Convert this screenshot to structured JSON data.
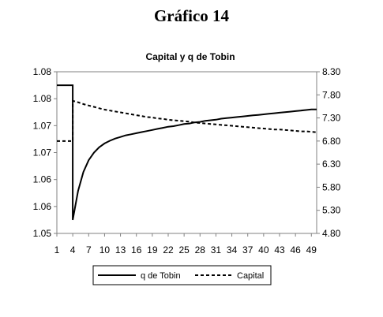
{
  "page_title": "Gráfico 14",
  "chart_data": {
    "type": "line",
    "title": "Capital y q de Tobin",
    "x": [
      1,
      2,
      3,
      4,
      5,
      6,
      7,
      8,
      9,
      10,
      11,
      12,
      13,
      14,
      15,
      16,
      17,
      18,
      19,
      20,
      21,
      22,
      23,
      24,
      25,
      26,
      27,
      28,
      29,
      30,
      31,
      32,
      33,
      34,
      35,
      36,
      37,
      38,
      39,
      40,
      41,
      42,
      43,
      44,
      45,
      46,
      47,
      48,
      49,
      50
    ],
    "x_tick_labels": [
      "1",
      "4",
      "7",
      "10",
      "13",
      "16",
      "19",
      "22",
      "25",
      "28",
      "31",
      "34",
      "37",
      "40",
      "43",
      "46",
      "49"
    ],
    "y_left_tick_labels": [
      "1.05",
      "1.06",
      "1.06",
      "1.07",
      "1.07",
      "1.08",
      "1.08"
    ],
    "y_left_range": [
      1.05,
      1.08
    ],
    "y_right_tick_labels": [
      "4.80",
      "5.30",
      "5.80",
      "6.30",
      "6.80",
      "7.30",
      "7.80",
      "8.30"
    ],
    "y_right_range": [
      4.8,
      8.3
    ],
    "grid": false,
    "legend_position": "bottom",
    "series": [
      {
        "name": "q de Tobin",
        "axis": "left",
        "style": "solid",
        "color": "#000000",
        "values": [
          1.0775,
          1.0775,
          1.0775,
          1.0525,
          1.0579,
          1.0614,
          1.0636,
          1.065,
          1.066,
          1.0667,
          1.0672,
          1.0676,
          1.0679,
          1.0682,
          1.0684,
          1.0686,
          1.0688,
          1.069,
          1.0692,
          1.0694,
          1.0696,
          1.0698,
          1.0699,
          1.0701,
          1.0703,
          1.0704,
          1.0706,
          1.0707,
          1.0709,
          1.071,
          1.0711,
          1.0713,
          1.0714,
          1.0715,
          1.0716,
          1.0717,
          1.0718,
          1.0719,
          1.072,
          1.0721,
          1.0722,
          1.0723,
          1.0724,
          1.0725,
          1.0726,
          1.0727,
          1.0728,
          1.0729,
          1.073,
          1.073
        ]
      },
      {
        "name": "Capital",
        "axis": "right",
        "style": "dashed",
        "color": "#000000",
        "values": [
          6.8,
          6.8,
          6.8,
          7.67,
          7.64,
          7.6,
          7.57,
          7.54,
          7.51,
          7.48,
          7.46,
          7.44,
          7.42,
          7.4,
          7.38,
          7.36,
          7.34,
          7.32,
          7.31,
          7.29,
          7.28,
          7.26,
          7.25,
          7.24,
          7.23,
          7.22,
          7.2,
          7.19,
          7.18,
          7.17,
          7.16,
          7.15,
          7.14,
          7.13,
          7.12,
          7.11,
          7.1,
          7.09,
          7.08,
          7.07,
          7.06,
          7.05,
          7.05,
          7.04,
          7.03,
          7.02,
          7.01,
          7.01,
          7.0,
          6.99
        ]
      }
    ]
  }
}
